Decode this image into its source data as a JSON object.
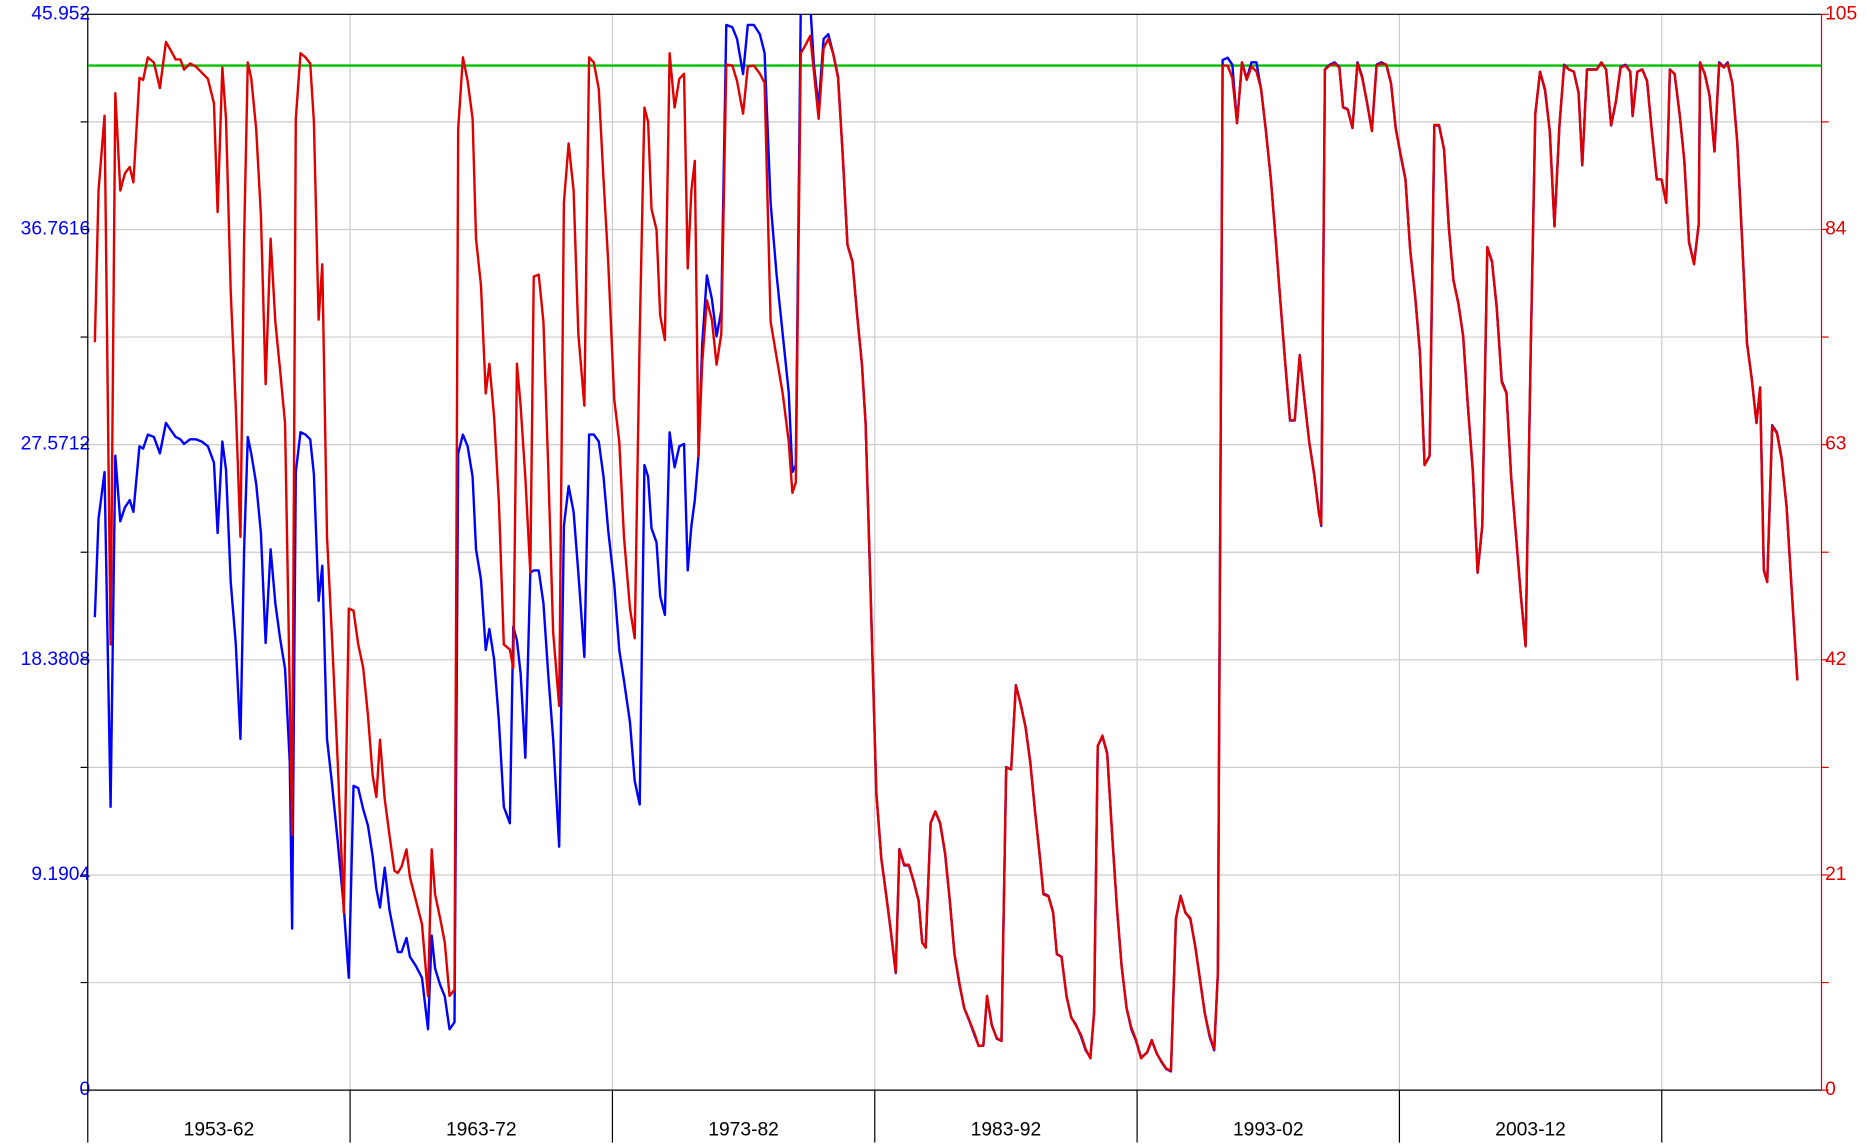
{
  "chart_data": {
    "type": "line",
    "categories": [
      "1953-62",
      "1963-72",
      "1973-82",
      "1983-92",
      "1993-02",
      "2003-12"
    ],
    "xlim": [
      1953,
      2019.09
    ],
    "xticks": [
      1953,
      1963,
      1973,
      1983,
      1993,
      2003,
      2013
    ],
    "ylim": [
      0,
      45.952
    ],
    "yticks": [
      0,
      9.1904,
      18.3808,
      27.5712,
      36.7616,
      45.952
    ],
    "yminor": [
      4.5952,
      13.7856,
      22.976,
      32.1664,
      41.3568
    ],
    "y2lim": [
      0,
      105
    ],
    "y2ticks": [
      0,
      21,
      42,
      63,
      84,
      105
    ],
    "y2minor": [
      10.5,
      31.5,
      52.5,
      73.5,
      94.5
    ],
    "grid": true,
    "y_color": "#0000ff",
    "y2_color": "#e00000",
    "hlines": [
      {
        "value": 100,
        "axis": "y2",
        "color": "#00c000"
      }
    ],
    "x": [
      1953.27,
      1953.41,
      1953.64,
      1953.87,
      1954.05,
      1954.24,
      1954.42,
      1954.6,
      1954.74,
      1954.97,
      1955.11,
      1955.29,
      1955.52,
      1955.75,
      1955.98,
      1956.16,
      1956.35,
      1956.53,
      1956.67,
      1956.9,
      1957.12,
      1957.35,
      1957.58,
      1957.81,
      1957.95,
      1958.13,
      1958.27,
      1958.45,
      1958.64,
      1958.82,
      1958.96,
      1959.1,
      1959.23,
      1959.42,
      1959.6,
      1959.78,
      1959.97,
      1960.15,
      1960.33,
      1960.52,
      1960.7,
      1960.79,
      1960.93,
      1961.11,
      1961.3,
      1961.48,
      1961.62,
      1961.8,
      1961.94,
      1962.12,
      1962.3,
      1962.53,
      1962.76,
      1962.95,
      1963.13,
      1963.31,
      1963.5,
      1963.68,
      1963.86,
      1964.0,
      1964.14,
      1964.32,
      1964.5,
      1964.69,
      1964.82,
      1964.96,
      1965.15,
      1965.28,
      1965.51,
      1965.74,
      1965.97,
      1966.11,
      1966.24,
      1966.43,
      1966.61,
      1966.79,
      1966.98,
      1967.12,
      1967.3,
      1967.48,
      1967.67,
      1967.8,
      1967.99,
      1968.17,
      1968.31,
      1968.49,
      1968.67,
      1968.86,
      1969.09,
      1969.22,
      1969.36,
      1969.5,
      1969.68,
      1969.87,
      1970.0,
      1970.19,
      1970.37,
      1970.55,
      1970.74,
      1970.97,
      1971.15,
      1971.33,
      1971.52,
      1971.7,
      1971.93,
      1972.11,
      1972.29,
      1972.48,
      1972.66,
      1972.84,
      1973.07,
      1973.26,
      1973.44,
      1973.67,
      1973.85,
      1974.04,
      1974.22,
      1974.36,
      1974.49,
      1974.68,
      1974.82,
      1975.0,
      1975.18,
      1975.37,
      1975.55,
      1975.73,
      1975.87,
      1976.01,
      1976.14,
      1976.28,
      1976.42,
      1976.6,
      1976.79,
      1976.97,
      1977.15,
      1977.34,
      1977.57,
      1977.75,
      1977.98,
      1978.16,
      1978.39,
      1978.62,
      1978.8,
      1979.03,
      1979.26,
      1979.49,
      1979.72,
      1979.86,
      1979.99,
      1980.18,
      1980.36,
      1980.54,
      1980.68,
      1980.86,
      1981.05,
      1981.23,
      1981.41,
      1981.6,
      1981.78,
      1981.96,
      1982.15,
      1982.33,
      1982.51,
      1982.65,
      1982.84,
      1983.06,
      1983.25,
      1983.43,
      1983.61,
      1983.8,
      1983.94,
      1984.12,
      1984.3,
      1984.49,
      1984.67,
      1984.81,
      1984.94,
      1985.13,
      1985.31,
      1985.49,
      1985.68,
      1985.86,
      1986.04,
      1986.23,
      1986.41,
      1986.59,
      1986.82,
      1986.96,
      1987.14,
      1987.28,
      1987.46,
      1987.65,
      1987.83,
      1988.01,
      1988.2,
      1988.38,
      1988.56,
      1988.75,
      1988.93,
      1989.11,
      1989.3,
      1989.43,
      1989.62,
      1989.8,
      1989.94,
      1990.12,
      1990.31,
      1990.49,
      1990.67,
      1990.86,
      1991.04,
      1991.22,
      1991.36,
      1991.5,
      1991.68,
      1991.86,
      1992.05,
      1992.23,
      1992.41,
      1992.6,
      1992.78,
      1992.96,
      1993.15,
      1993.38,
      1993.56,
      1993.74,
      1993.93,
      1994.11,
      1994.29,
      1994.48,
      1994.66,
      1994.84,
      1995.03,
      1995.21,
      1995.39,
      1995.58,
      1995.76,
      1995.94,
      1996.08,
      1996.26,
      1996.45,
      1996.63,
      1996.81,
      1997.0,
      1997.18,
      1997.36,
      1997.55,
      1997.73,
      1997.91,
      1998.1,
      1998.28,
      1998.46,
      1998.65,
      1998.83,
      1999.01,
      1999.2,
      1999.38,
      1999.56,
      1999.75,
      1999.93,
      2000.02,
      2000.16,
      2000.34,
      2000.53,
      2000.71,
      2000.85,
      2001.03,
      2001.21,
      2001.4,
      2001.58,
      2001.76,
      2001.95,
      2002.13,
      2002.31,
      2002.5,
      2002.68,
      2002.86,
      2003.05,
      2003.23,
      2003.41,
      2003.6,
      2003.78,
      2003.96,
      2004.15,
      2004.33,
      2004.51,
      2004.7,
      2004.88,
      2005.06,
      2005.25,
      2005.43,
      2005.61,
      2005.8,
      2005.98,
      2006.16,
      2006.35,
      2006.53,
      2006.71,
      2006.9,
      2007.08,
      2007.26,
      2007.45,
      2007.63,
      2007.81,
      2008.0,
      2008.18,
      2008.36,
      2008.55,
      2008.73,
      2008.91,
      2009.1,
      2009.28,
      2009.46,
      2009.65,
      2009.83,
      2009.97,
      2010.15,
      2010.33,
      2010.52,
      2010.7,
      2010.88,
      2011.07,
      2011.25,
      2011.43,
      2011.62,
      2011.8,
      2011.89,
      2012.07,
      2012.26,
      2012.44,
      2012.62,
      2012.81,
      2012.99,
      2013.17,
      2013.31,
      2013.49,
      2013.68,
      2013.86,
      2014.04,
      2014.23,
      2014.41,
      2014.46,
      2014.64,
      2014.82,
      2015.01,
      2015.19,
      2015.37,
      2015.51,
      2015.69,
      2015.88,
      2016.06,
      2016.25,
      2016.43,
      2016.61,
      2016.75,
      2016.89,
      2017.02,
      2017.21,
      2017.39,
      2017.57,
      2017.76,
      2017.94,
      2018.17
    ],
    "series": [
      {
        "color": "#0000ff",
        "axis": "y",
        "values": [
          20.2,
          24.4,
          26.4,
          12.1,
          27.1,
          24.3,
          24.9,
          25.2,
          24.7,
          27.5,
          27.4,
          28.0,
          27.9,
          27.2,
          28.5,
          28.2,
          27.9,
          27.8,
          27.6,
          27.8,
          27.8,
          27.7,
          27.5,
          26.8,
          23.8,
          27.7,
          26.5,
          21.7,
          19.1,
          15.0,
          23.1,
          27.9,
          27.2,
          25.9,
          23.8,
          19.1,
          23.1,
          20.8,
          19.3,
          18.0,
          14.0,
          6.9,
          26.4,
          28.1,
          28.0,
          27.8,
          26.3,
          20.9,
          22.4,
          15.0,
          13.2,
          10.6,
          7.8,
          4.8,
          13.0,
          12.9,
          12.0,
          11.3,
          10.0,
          8.6,
          7.8,
          9.5,
          7.7,
          6.6,
          5.9,
          5.9,
          6.5,
          5.7,
          5.3,
          4.8,
          2.6,
          6.6,
          5.2,
          4.5,
          4.0,
          2.6,
          2.9,
          27.2,
          28.0,
          27.5,
          26.2,
          23.1,
          21.8,
          18.8,
          19.7,
          18.4,
          15.8,
          12.1,
          11.4,
          19.8,
          19.2,
          17.8,
          14.2,
          22.1,
          22.2,
          22.2,
          20.8,
          17.8,
          15.0,
          10.4,
          24.1,
          25.8,
          24.7,
          22.1,
          18.5,
          28.0,
          28.0,
          27.7,
          26.2,
          23.9,
          21.6,
          18.8,
          17.5,
          15.7,
          13.2,
          12.2,
          26.7,
          26.2,
          24.0,
          23.4,
          21.1,
          20.3,
          28.1,
          26.6,
          27.5,
          27.6,
          22.2,
          24.1,
          25.2,
          27.1,
          31.8,
          34.8,
          33.8,
          32.2,
          33.3,
          45.5,
          45.4,
          44.9,
          43.4,
          45.5,
          45.5,
          45.1,
          44.3,
          37.9,
          34.8,
          32.3,
          29.8,
          26.4,
          26.7,
          46.3,
          46.3,
          46.4,
          43.8,
          42.0,
          44.9,
          45.1,
          44.3,
          43.3,
          39.9,
          36.1,
          35.4,
          33.1,
          31.0,
          28.5,
          21.3,
          12.7,
          9.9,
          8.4,
          6.8,
          5.0,
          10.3,
          9.6,
          9.6,
          8.9,
          8.1,
          6.3,
          6.1,
          11.4,
          11.9,
          11.4,
          10.1,
          8.1,
          5.8,
          4.5,
          3.5,
          3.0,
          2.3,
          1.9,
          1.9,
          4.0,
          2.8,
          2.2,
          2.1,
          13.8,
          13.7,
          17.3,
          16.5,
          15.5,
          14.0,
          11.9,
          9.9,
          8.4,
          8.3,
          7.6,
          5.8,
          5.7,
          4.0,
          3.1,
          2.8,
          2.3,
          1.7,
          1.4,
          3.3,
          14.7,
          15.1,
          14.4,
          10.9,
          7.8,
          5.3,
          3.5,
          2.6,
          2.1,
          1.4,
          1.6,
          2.1,
          1.6,
          1.2,
          0.9,
          0.8,
          7.3,
          8.3,
          7.6,
          7.3,
          6.2,
          4.8,
          3.3,
          2.3,
          1.7,
          5.0,
          44.0,
          44.1,
          43.8,
          41.3,
          43.9,
          43.2,
          43.9,
          43.9,
          42.7,
          41.0,
          38.9,
          36.4,
          33.7,
          31.0,
          28.6,
          28.6,
          31.4,
          29.5,
          27.7,
          26.3,
          24.7,
          24.1,
          43.6,
          43.8,
          43.9,
          43.7,
          42.0,
          41.9,
          41.1,
          43.9,
          43.3,
          42.2,
          41.0,
          43.8,
          43.9,
          43.8,
          43.0,
          41.1,
          39.9,
          38.9,
          35.9,
          33.9,
          31.5,
          26.7,
          27.1,
          41.2,
          41.2,
          40.2,
          36.9,
          34.6,
          33.6,
          32.2,
          29.2,
          26.4,
          22.1,
          24.1,
          36.0,
          35.4,
          33.4,
          30.3,
          29.8,
          26.2,
          23.6,
          21.1,
          19.0,
          31.3,
          41.7,
          43.5,
          42.7,
          41.0,
          36.9,
          41.2,
          43.8,
          43.6,
          43.5,
          42.6,
          39.5,
          43.6,
          43.6,
          43.6,
          43.9,
          43.6,
          41.2,
          42.2,
          43.7,
          43.8,
          43.5,
          41.6,
          43.5,
          43.6,
          43.1,
          41.0,
          38.9,
          38.9,
          37.9,
          43.6,
          43.4,
          41.7,
          39.7,
          36.2,
          35.3,
          37.0,
          43.9,
          43.4,
          42.5,
          40.1,
          43.9,
          43.7,
          43.9,
          43.0,
          40.5,
          36.4,
          31.9,
          30.4,
          28.5,
          30.0,
          22.2,
          21.7,
          28.4,
          28.1,
          27.0,
          24.9,
          21.6,
          17.5
        ]
      },
      {
        "color": "#e00000",
        "axis": "y2",
        "values": [
          73.0,
          87.8,
          95.1,
          43.5,
          97.3,
          87.8,
          89.5,
          90.1,
          88.6,
          98.8,
          98.6,
          100.8,
          100.3,
          97.8,
          102.3,
          101.5,
          100.6,
          100.6,
          99.6,
          100.2,
          99.9,
          99.3,
          98.7,
          96.3,
          85.7,
          99.8,
          94.8,
          77.9,
          66.8,
          54.0,
          83.1,
          100.3,
          98.8,
          93.8,
          85.4,
          68.9,
          83.1,
          75.0,
          70.3,
          65.1,
          38.9,
          24.9,
          94.8,
          101.2,
          100.8,
          100.2,
          94.5,
          75.2,
          80.6,
          54.0,
          44.7,
          31.9,
          17.3,
          47.0,
          46.8,
          43.5,
          41.2,
          36.6,
          30.7,
          28.6,
          34.2,
          28.4,
          24.9,
          21.4,
          21.2,
          21.8,
          23.5,
          20.8,
          18.5,
          16.2,
          9.2,
          23.5,
          19.1,
          16.8,
          14.4,
          9.2,
          9.8,
          93.8,
          100.8,
          98.5,
          94.8,
          83.1,
          78.5,
          68.0,
          70.9,
          65.7,
          57.5,
          43.5,
          43.0,
          41.2,
          70.9,
          66.8,
          59.8,
          50.5,
          79.4,
          79.6,
          75.0,
          61.0,
          44.7,
          37.5,
          86.6,
          92.4,
          87.8,
          73.8,
          66.8,
          100.8,
          100.3,
          97.7,
          88.9,
          80.8,
          67.4,
          63.3,
          54.0,
          47.0,
          44.1,
          73.8,
          95.9,
          94.5,
          86.0,
          84.0,
          75.6,
          73.2,
          101.2,
          95.9,
          98.7,
          99.2,
          80.2,
          87.8,
          90.7,
          61.9,
          70.9,
          77.1,
          75.2,
          70.8,
          73.8,
          100.1,
          100.0,
          98.5,
          95.3,
          99.9,
          100.0,
          99.2,
          98.3,
          75.0,
          71.5,
          68.0,
          63.3,
          58.3,
          59.3,
          101.2,
          102.0,
          102.9,
          99.4,
          94.8,
          101.7,
          102.6,
          101.2,
          98.8,
          91.3,
          82.5,
          80.8,
          75.6,
          70.9,
          65.1,
          48.8,
          29.0,
          22.6,
          19.1,
          15.6,
          11.5,
          23.5,
          22.0,
          22.0,
          20.3,
          18.5,
          14.4,
          13.9,
          26.1,
          27.2,
          26.1,
          23.2,
          18.5,
          13.3,
          10.4,
          8.0,
          6.9,
          5.4,
          4.3,
          4.4,
          9.2,
          6.3,
          5.1,
          4.8,
          31.5,
          31.3,
          39.5,
          37.7,
          35.4,
          31.9,
          27.2,
          22.6,
          19.1,
          18.9,
          17.3,
          13.3,
          13.0,
          9.2,
          7.1,
          6.3,
          5.4,
          4.0,
          3.1,
          7.5,
          33.6,
          34.6,
          32.8,
          24.9,
          17.9,
          12.1,
          8.0,
          6.1,
          4.9,
          3.1,
          3.7,
          4.9,
          3.6,
          2.8,
          2.1,
          1.9,
          16.8,
          18.9,
          17.3,
          16.8,
          14.1,
          10.9,
          7.5,
          5.4,
          4.0,
          11.5,
          100.0,
          100.0,
          98.8,
          94.4,
          100.3,
          98.6,
          99.9,
          99.4,
          97.7,
          93.6,
          88.9,
          83.1,
          77.1,
          70.9,
          65.4,
          65.4,
          71.7,
          67.4,
          63.3,
          60.1,
          56.3,
          55.2,
          99.6,
          100.0,
          100.2,
          99.8,
          95.9,
          95.7,
          93.9,
          100.2,
          98.8,
          96.5,
          93.6,
          100.0,
          100.2,
          100.1,
          98.3,
          93.8,
          91.3,
          88.9,
          82.0,
          77.5,
          72.1,
          61.0,
          61.9,
          94.2,
          94.2,
          91.8,
          84.3,
          79.0,
          76.7,
          73.6,
          66.8,
          60.4,
          50.5,
          55.2,
          82.3,
          80.8,
          76.4,
          69.1,
          68.0,
          59.8,
          54.0,
          48.2,
          43.3,
          71.5,
          95.3,
          99.4,
          97.7,
          93.6,
          84.3,
          94.2,
          100.0,
          99.6,
          99.4,
          97.3,
          90.3,
          99.6,
          99.6,
          99.6,
          100.3,
          99.6,
          94.2,
          96.5,
          99.8,
          100.0,
          99.4,
          95.1,
          99.4,
          99.6,
          98.5,
          93.6,
          88.9,
          88.9,
          86.6,
          99.6,
          99.2,
          95.3,
          90.7,
          82.8,
          80.6,
          84.5,
          100.3,
          99.2,
          97.1,
          91.6,
          100.2,
          99.8,
          100.2,
          98.3,
          92.4,
          83.1,
          72.9,
          69.4,
          65.1,
          68.6,
          50.8,
          49.6,
          64.8,
          64.1,
          61.6,
          56.9,
          49.4,
          40.0
        ]
      }
    ]
  }
}
